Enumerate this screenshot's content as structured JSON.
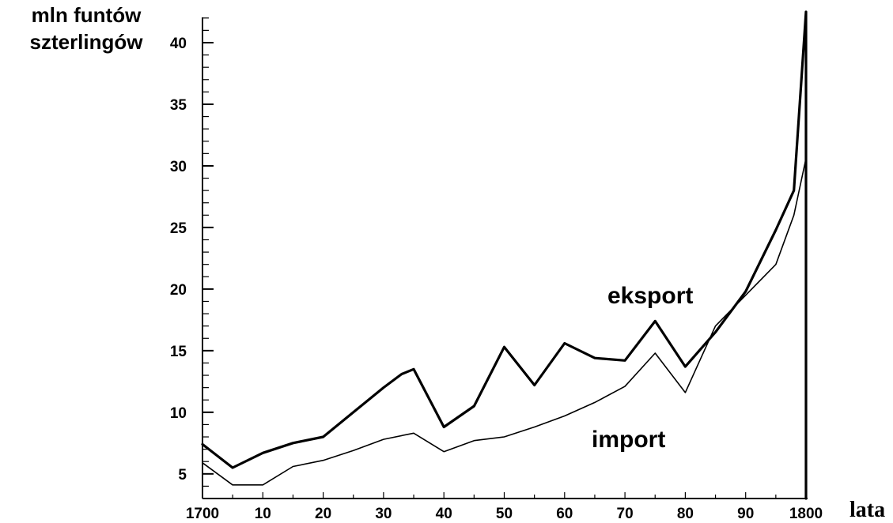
{
  "chart_data": {
    "type": "line",
    "title": "",
    "ylabel_lines": [
      "mln funtów",
      "szterlingów"
    ],
    "xlabel": "lata",
    "xlim": [
      1700,
      1800
    ],
    "ylim": [
      3,
      42.5
    ],
    "grid": false,
    "x_ticks": [
      {
        "value": 1700,
        "label": "1700"
      },
      {
        "value": 1710,
        "label": "10"
      },
      {
        "value": 1720,
        "label": "20"
      },
      {
        "value": 1730,
        "label": "30"
      },
      {
        "value": 1740,
        "label": "40"
      },
      {
        "value": 1750,
        "label": "50"
      },
      {
        "value": 1760,
        "label": "60"
      },
      {
        "value": 1770,
        "label": "70"
      },
      {
        "value": 1780,
        "label": "80"
      },
      {
        "value": 1790,
        "label": "90"
      },
      {
        "value": 1800,
        "label": "1800"
      }
    ],
    "y_ticks": [
      {
        "value": 5,
        "label": "5"
      },
      {
        "value": 10,
        "label": "10"
      },
      {
        "value": 15,
        "label": "15"
      },
      {
        "value": 20,
        "label": "20"
      },
      {
        "value": 25,
        "label": "25"
      },
      {
        "value": 30,
        "label": "30"
      },
      {
        "value": 35,
        "label": "35"
      },
      {
        "value": 40,
        "label": "40"
      }
    ],
    "series": [
      {
        "name": "eksport",
        "color": "#000000",
        "x": [
          1700,
          1705,
          1710,
          1715,
          1720,
          1725,
          1730,
          1733,
          1735,
          1740,
          1745,
          1750,
          1755,
          1760,
          1765,
          1770,
          1775,
          1780,
          1785,
          1790,
          1795,
          1798,
          1800,
          1800
        ],
        "y": [
          7.4,
          5.5,
          6.7,
          7.5,
          8.0,
          10.0,
          12.0,
          13.1,
          13.5,
          8.8,
          10.5,
          15.3,
          12.2,
          15.6,
          14.4,
          14.2,
          17.4,
          13.7,
          16.5,
          19.8,
          24.8,
          28.0,
          42.5,
          3.0
        ]
      },
      {
        "name": "import",
        "color": "#000000",
        "x": [
          1700,
          1705,
          1710,
          1715,
          1720,
          1725,
          1730,
          1735,
          1740,
          1745,
          1750,
          1755,
          1760,
          1765,
          1770,
          1775,
          1780,
          1785,
          1790,
          1795,
          1798,
          1800
        ],
        "y": [
          5.9,
          4.1,
          4.1,
          5.6,
          6.1,
          6.9,
          7.8,
          8.3,
          6.8,
          7.7,
          8.0,
          8.8,
          9.7,
          10.8,
          12.1,
          14.8,
          11.6,
          17.0,
          19.5,
          22.0,
          26.0,
          30.6
        ]
      }
    ]
  }
}
